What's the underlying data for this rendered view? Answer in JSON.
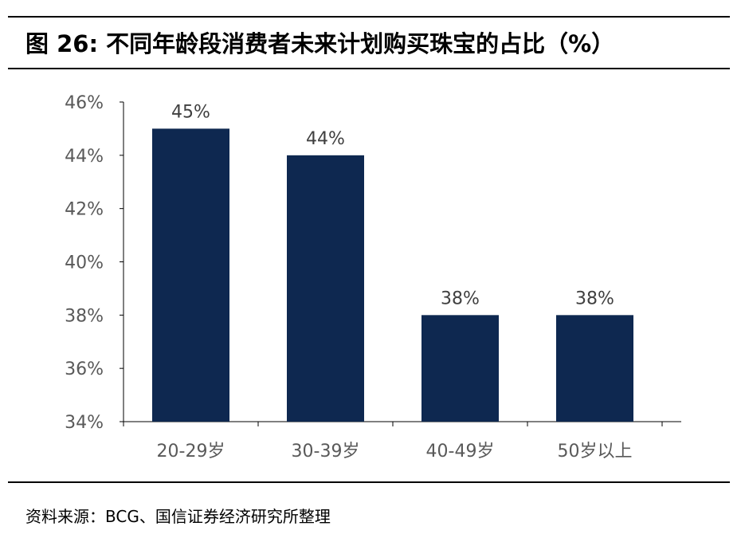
{
  "figure": {
    "title": "图 26:  不同年龄段消费者未来计划购买珠宝的占比（%）",
    "source": "资料来源：BCG、国信证券经济研究所整理"
  },
  "colors": {
    "bar": "#0e2850",
    "axis": "#000000",
    "tick_label": "#595959",
    "data_label": "#404040",
    "plot_bg": "#ffffff"
  },
  "chart_data": {
    "type": "bar",
    "categories": [
      "20-29岁",
      "30-39岁",
      "40-49岁",
      "50岁以上"
    ],
    "values": [
      45,
      44,
      38,
      38
    ],
    "data_labels": [
      "45%",
      "44%",
      "38%",
      "38%"
    ],
    "ylim": [
      34,
      46
    ],
    "yticks": [
      34,
      36,
      38,
      40,
      42,
      44,
      46
    ],
    "ytick_labels": [
      "34%",
      "36%",
      "38%",
      "40%",
      "42%",
      "44%",
      "46%"
    ],
    "xlabel": "",
    "ylabel": "",
    "grid": false,
    "legend": "none"
  }
}
